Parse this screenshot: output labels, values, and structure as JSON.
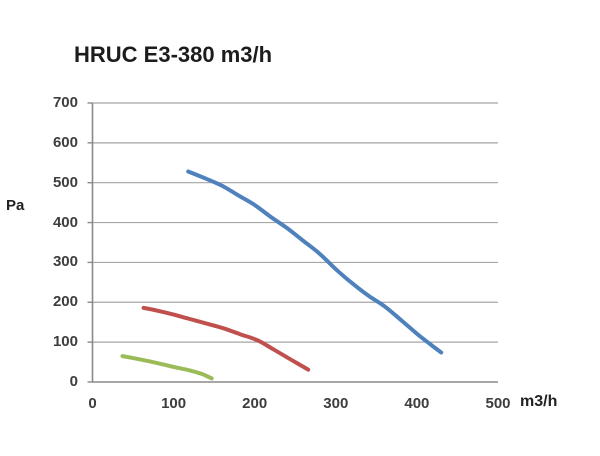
{
  "title": "HRUC E3-380 m3/h",
  "y_axis": {
    "label": "Pa",
    "ticks": [
      0,
      100,
      200,
      300,
      400,
      500,
      600,
      700
    ],
    "min": 0,
    "max": 700
  },
  "x_axis": {
    "label": "m3/h",
    "ticks": [
      0,
      100,
      200,
      300,
      400,
      500
    ],
    "min": 0,
    "max": 500
  },
  "colors": {
    "series_blue": "#4f81bd",
    "series_red": "#c0504d",
    "series_green": "#9bbb59",
    "gridline": "#a6a6a6",
    "axis": "#8a8a8a",
    "tick_text": "#3d3d3d",
    "title_text": "#1c1c1c"
  },
  "chart_data": {
    "type": "line",
    "title": "HRUC E3-380 m3/h",
    "xlabel": "m3/h",
    "ylabel": "Pa",
    "xlim": [
      0,
      500
    ],
    "ylim": [
      0,
      700
    ],
    "grid": true,
    "legend": false,
    "series": [
      {
        "name": "blue-curve",
        "color": "#4f81bd",
        "points": [
          [
            118,
            528
          ],
          [
            140,
            510
          ],
          [
            160,
            492
          ],
          [
            180,
            468
          ],
          [
            200,
            444
          ],
          [
            220,
            414
          ],
          [
            240,
            386
          ],
          [
            260,
            354
          ],
          [
            280,
            322
          ],
          [
            300,
            283
          ],
          [
            320,
            248
          ],
          [
            340,
            217
          ],
          [
            360,
            190
          ],
          [
            380,
            156
          ],
          [
            400,
            121
          ],
          [
            415,
            97
          ],
          [
            430,
            74
          ]
        ]
      },
      {
        "name": "red-curve",
        "color": "#c0504d",
        "points": [
          [
            63,
            186
          ],
          [
            80,
            179
          ],
          [
            100,
            169
          ],
          [
            120,
            158
          ],
          [
            140,
            147
          ],
          [
            161,
            135
          ],
          [
            182,
            120
          ],
          [
            203,
            105
          ],
          [
            223,
            82
          ],
          [
            244,
            57
          ],
          [
            266,
            31
          ]
        ]
      },
      {
        "name": "green-curve",
        "color": "#9bbb59",
        "points": [
          [
            37,
            65
          ],
          [
            58,
            57
          ],
          [
            79,
            48
          ],
          [
            100,
            38
          ],
          [
            120,
            29
          ],
          [
            135,
            20
          ],
          [
            147,
            9
          ]
        ]
      }
    ]
  }
}
